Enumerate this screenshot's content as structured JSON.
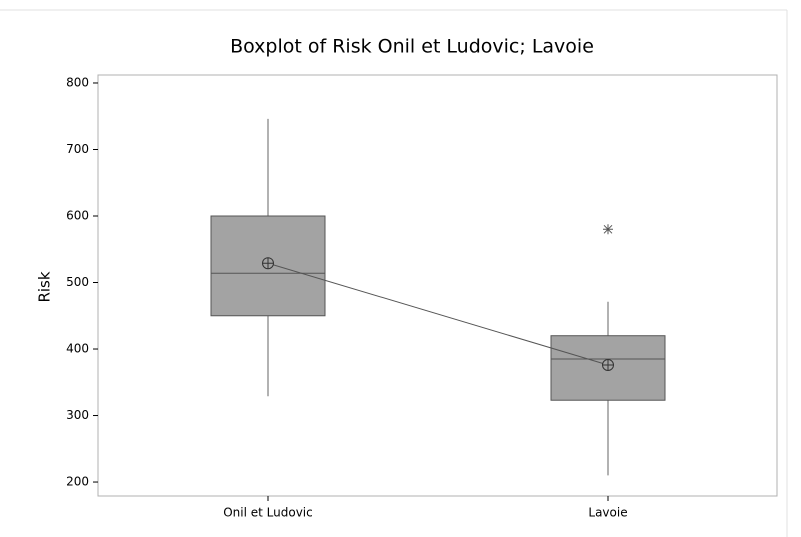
{
  "chart_data": {
    "type": "box",
    "title": "Boxplot of Risk Onil et Ludovic; Lavoie",
    "y_label": "Risk",
    "categories": [
      "Onil et Ludovic",
      "Lavoie"
    ],
    "boxes": [
      {
        "whisker_low": 329,
        "q1": 450,
        "median": 514,
        "q3": 600,
        "whisker_high": 746,
        "mean": 529,
        "outliers": []
      },
      {
        "whisker_low": 210,
        "q1": 323,
        "median": 385,
        "q3": 420,
        "whisker_high": 471,
        "mean": 376,
        "outliers": [
          580
        ]
      }
    ],
    "color": "#a3a3a3",
    "connect_means": true,
    "ylim": [
      179,
      812
    ],
    "yticks": [
      200,
      300,
      400,
      500,
      600,
      700,
      800
    ]
  }
}
